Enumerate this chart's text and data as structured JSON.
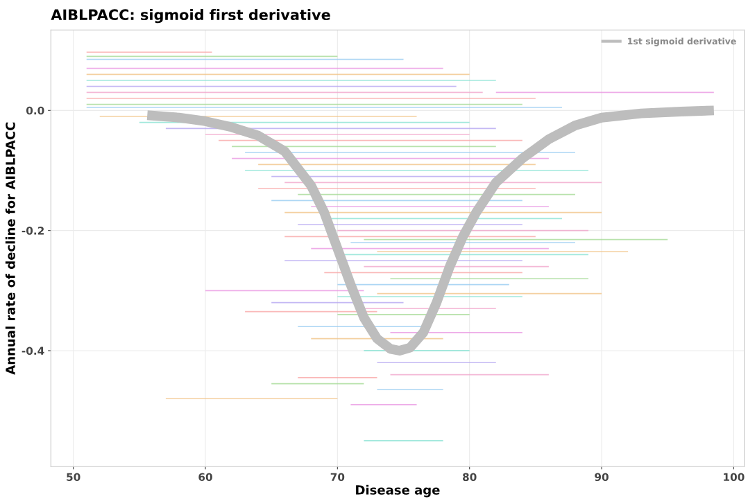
{
  "chart_data": {
    "type": "line",
    "title": "AIBLPACC: sigmoid first derivative",
    "xlabel": "Disease age",
    "ylabel": "Annual rate of decline for AIBLPACC",
    "xlim": [
      48.3,
      100.8
    ],
    "xticks": [
      50,
      60,
      70,
      80,
      90,
      100
    ],
    "ylim": [
      -0.593,
      0.134
    ],
    "yticks": [
      {
        "value": -0.4,
        "label": "-0.4"
      },
      {
        "value": -0.2,
        "label": "-0.2"
      },
      {
        "value": 0.0,
        "label": "0.0"
      }
    ],
    "grid": true,
    "legend": "top right",
    "marker": "none",
    "series": [
      {
        "color": "#f8a0a0",
        "x": [
          51,
          60.5
        ],
        "values": [
          0.097,
          0.097
        ]
      },
      {
        "color": "#a0d890",
        "x": [
          51,
          70
        ],
        "values": [
          0.09,
          0.09
        ]
      },
      {
        "color": "#90c8f0",
        "x": [
          51,
          75
        ],
        "values": [
          0.085,
          0.085
        ]
      },
      {
        "color": "#e890e0",
        "x": [
          51,
          78
        ],
        "values": [
          0.07,
          0.07
        ]
      },
      {
        "color": "#f0c080",
        "x": [
          51,
          80
        ],
        "values": [
          0.06,
          0.06
        ]
      },
      {
        "color": "#80e0d0",
        "x": [
          51,
          82
        ],
        "values": [
          0.05,
          0.05
        ]
      },
      {
        "color": "#b0a0f0",
        "x": [
          51,
          79
        ],
        "values": [
          0.04,
          0.04
        ]
      },
      {
        "color": "#f0a0c8",
        "x": [
          51,
          81
        ],
        "values": [
          0.03,
          0.03
        ]
      },
      {
        "color": "#f8a0a0",
        "x": [
          51,
          85
        ],
        "values": [
          0.02,
          0.02
        ]
      },
      {
        "color": "#a0d890",
        "x": [
          51,
          84
        ],
        "values": [
          0.01,
          0.01
        ]
      },
      {
        "color": "#90c8f0",
        "x": [
          51,
          87
        ],
        "values": [
          0.005,
          0.005
        ]
      },
      {
        "color": "#e890e0",
        "x": [
          82,
          98.5
        ],
        "values": [
          0.03,
          0.03
        ]
      },
      {
        "color": "#f0c080",
        "x": [
          52,
          76
        ],
        "values": [
          -0.01,
          -0.01
        ]
      },
      {
        "color": "#80e0d0",
        "x": [
          55,
          80
        ],
        "values": [
          -0.02,
          -0.02
        ]
      },
      {
        "color": "#b0a0f0",
        "x": [
          57,
          82
        ],
        "values": [
          -0.03,
          -0.03
        ]
      },
      {
        "color": "#f0a0c8",
        "x": [
          60,
          80
        ],
        "values": [
          -0.04,
          -0.04
        ]
      },
      {
        "color": "#f8a0a0",
        "x": [
          61,
          84
        ],
        "values": [
          -0.05,
          -0.05
        ]
      },
      {
        "color": "#a0d890",
        "x": [
          62,
          82
        ],
        "values": [
          -0.06,
          -0.06
        ]
      },
      {
        "color": "#90c8f0",
        "x": [
          63,
          88
        ],
        "values": [
          -0.07,
          -0.07
        ]
      },
      {
        "color": "#e890e0",
        "x": [
          62,
          86
        ],
        "values": [
          -0.08,
          -0.08
        ]
      },
      {
        "color": "#f0c080",
        "x": [
          64,
          85
        ],
        "values": [
          -0.09,
          -0.09
        ]
      },
      {
        "color": "#80e0d0",
        "x": [
          63,
          89
        ],
        "values": [
          -0.1,
          -0.1
        ]
      },
      {
        "color": "#b0a0f0",
        "x": [
          65,
          83
        ],
        "values": [
          -0.11,
          -0.11
        ]
      },
      {
        "color": "#f0a0c8",
        "x": [
          66,
          90
        ],
        "values": [
          -0.12,
          -0.12
        ]
      },
      {
        "color": "#f8a0a0",
        "x": [
          64,
          85
        ],
        "values": [
          -0.13,
          -0.13
        ]
      },
      {
        "color": "#a0d890",
        "x": [
          67,
          88
        ],
        "values": [
          -0.14,
          -0.14
        ]
      },
      {
        "color": "#90c8f0",
        "x": [
          65,
          84
        ],
        "values": [
          -0.15,
          -0.15
        ]
      },
      {
        "color": "#e890e0",
        "x": [
          68,
          86
        ],
        "values": [
          -0.16,
          -0.16
        ]
      },
      {
        "color": "#f0c080",
        "x": [
          66,
          90
        ],
        "values": [
          -0.17,
          -0.17
        ]
      },
      {
        "color": "#80e0d0",
        "x": [
          69,
          87
        ],
        "values": [
          -0.18,
          -0.18
        ]
      },
      {
        "color": "#b0a0f0",
        "x": [
          67,
          84
        ],
        "values": [
          -0.19,
          -0.19
        ]
      },
      {
        "color": "#f0a0c8",
        "x": [
          70,
          89
        ],
        "values": [
          -0.2,
          -0.2
        ]
      },
      {
        "color": "#f8a0a0",
        "x": [
          66,
          85
        ],
        "values": [
          -0.21,
          -0.21
        ]
      },
      {
        "color": "#a0d890",
        "x": [
          72,
          95
        ],
        "values": [
          -0.215,
          -0.215
        ]
      },
      {
        "color": "#90c8f0",
        "x": [
          71,
          88
        ],
        "values": [
          -0.22,
          -0.22
        ]
      },
      {
        "color": "#e890e0",
        "x": [
          68,
          86
        ],
        "values": [
          -0.23,
          -0.23
        ]
      },
      {
        "color": "#f0c080",
        "x": [
          73,
          92
        ],
        "values": [
          -0.235,
          -0.235
        ]
      },
      {
        "color": "#80e0d0",
        "x": [
          70,
          89
        ],
        "values": [
          -0.24,
          -0.24
        ]
      },
      {
        "color": "#b0a0f0",
        "x": [
          66,
          84
        ],
        "values": [
          -0.25,
          -0.25
        ]
      },
      {
        "color": "#f0a0c8",
        "x": [
          72,
          86
        ],
        "values": [
          -0.26,
          -0.26
        ]
      },
      {
        "color": "#f8a0a0",
        "x": [
          69,
          84
        ],
        "values": [
          -0.27,
          -0.27
        ]
      },
      {
        "color": "#a0d890",
        "x": [
          74,
          89
        ],
        "values": [
          -0.28,
          -0.28
        ]
      },
      {
        "color": "#90c8f0",
        "x": [
          70,
          83
        ],
        "values": [
          -0.29,
          -0.29
        ]
      },
      {
        "color": "#e890e0",
        "x": [
          60,
          72
        ],
        "values": [
          -0.3,
          -0.3
        ]
      },
      {
        "color": "#f0c080",
        "x": [
          73,
          90
        ],
        "values": [
          -0.305,
          -0.305
        ]
      },
      {
        "color": "#80e0d0",
        "x": [
          70,
          84
        ],
        "values": [
          -0.31,
          -0.31
        ]
      },
      {
        "color": "#b0a0f0",
        "x": [
          65,
          75
        ],
        "values": [
          -0.32,
          -0.32
        ]
      },
      {
        "color": "#f0a0c8",
        "x": [
          72,
          82
        ],
        "values": [
          -0.33,
          -0.33
        ]
      },
      {
        "color": "#f8a0a0",
        "x": [
          63,
          73
        ],
        "values": [
          -0.335,
          -0.335
        ]
      },
      {
        "color": "#a0d890",
        "x": [
          70,
          80
        ],
        "values": [
          -0.34,
          -0.34
        ]
      },
      {
        "color": "#90c8f0",
        "x": [
          67,
          77
        ],
        "values": [
          -0.36,
          -0.36
        ]
      },
      {
        "color": "#e890e0",
        "x": [
          74,
          84
        ],
        "values": [
          -0.37,
          -0.37
        ]
      },
      {
        "color": "#f0c080",
        "x": [
          68,
          78
        ],
        "values": [
          -0.38,
          -0.38
        ]
      },
      {
        "color": "#80e0d0",
        "x": [
          72,
          80
        ],
        "values": [
          -0.4,
          -0.4
        ]
      },
      {
        "color": "#b0a0f0",
        "x": [
          73,
          82
        ],
        "values": [
          -0.42,
          -0.42
        ]
      },
      {
        "color": "#f0a0c8",
        "x": [
          74,
          86
        ],
        "values": [
          -0.44,
          -0.44
        ]
      },
      {
        "color": "#f8a0a0",
        "x": [
          67,
          73
        ],
        "values": [
          -0.445,
          -0.445
        ]
      },
      {
        "color": "#a0d890",
        "x": [
          65,
          72
        ],
        "values": [
          -0.455,
          -0.455
        ]
      },
      {
        "color": "#90c8f0",
        "x": [
          73,
          78
        ],
        "values": [
          -0.465,
          -0.465
        ]
      },
      {
        "color": "#e890e0",
        "x": [
          71,
          76
        ],
        "values": [
          -0.49,
          -0.49
        ]
      },
      {
        "color": "#f0c080",
        "x": [
          57,
          70
        ],
        "values": [
          -0.48,
          -0.48
        ]
      },
      {
        "color": "#80e0d0",
        "x": [
          72,
          78
        ],
        "values": [
          -0.55,
          -0.55
        ]
      },
      {
        "name": "1st sigmoid derivative",
        "color": "#bdbdbd",
        "x": [
          55.6,
          58,
          60,
          62,
          64,
          66,
          68,
          69,
          70,
          71,
          72,
          73,
          74,
          74.7,
          75.5,
          76.5,
          77.5,
          78.5,
          79.5,
          80.5,
          82,
          84,
          86,
          88,
          90,
          93,
          96,
          98.5
        ],
        "values": [
          -0.008,
          -0.012,
          -0.018,
          -0.028,
          -0.042,
          -0.068,
          -0.125,
          -0.17,
          -0.23,
          -0.29,
          -0.345,
          -0.38,
          -0.397,
          -0.4,
          -0.395,
          -0.37,
          -0.32,
          -0.26,
          -0.21,
          -0.17,
          -0.12,
          -0.08,
          -0.048,
          -0.025,
          -0.012,
          -0.005,
          -0.002,
          0.0
        ]
      }
    ]
  }
}
